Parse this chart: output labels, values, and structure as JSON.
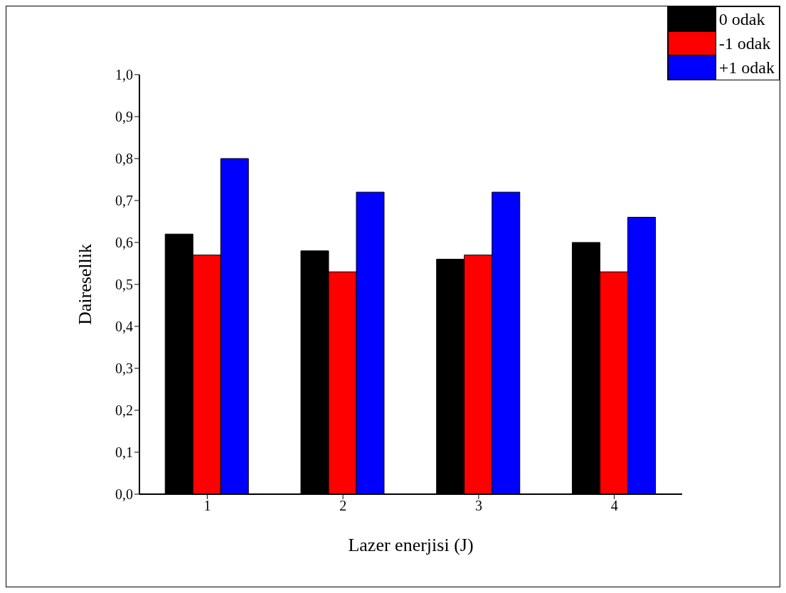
{
  "chart_data": {
    "type": "bar",
    "xlabel": "Lazer enerjisi (J)",
    "ylabel": "Dairesellik",
    "categories": [
      "1",
      "2",
      "3",
      "4"
    ],
    "series": [
      {
        "name": "0 odak",
        "color": "#000000",
        "values": [
          0.62,
          0.58,
          0.56,
          0.6
        ]
      },
      {
        "name": "-1 odak",
        "color": "#ff0000",
        "values": [
          0.57,
          0.53,
          0.57,
          0.53
        ]
      },
      {
        "name": "+1 odak",
        "color": "#0000ff",
        "values": [
          0.8,
          0.72,
          0.72,
          0.66
        ]
      }
    ],
    "ylim": [
      0,
      1
    ],
    "yticks": [
      {
        "value": 0,
        "label": "0,0"
      },
      {
        "value": 0.1,
        "label": "0,1"
      },
      {
        "value": 0.2,
        "label": "0,2"
      },
      {
        "value": 0.3,
        "label": "0,3"
      },
      {
        "value": 0.4,
        "label": "0,4"
      },
      {
        "value": 0.5,
        "label": "0,5"
      },
      {
        "value": 0.6,
        "label": "0,6"
      },
      {
        "value": 0.7,
        "label": "0,7"
      },
      {
        "value": 0.8,
        "label": "0,8"
      },
      {
        "value": 0.9,
        "label": "0,9"
      },
      {
        "value": 1,
        "label": "1,0"
      }
    ],
    "grid": false,
    "legend": "top right"
  }
}
